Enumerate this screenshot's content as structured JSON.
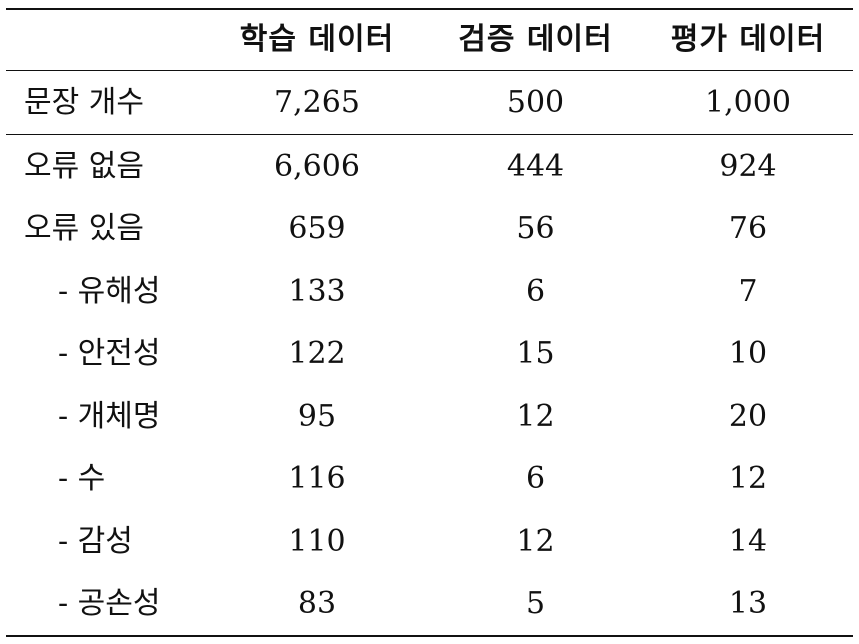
{
  "table": {
    "headers": [
      "",
      "학습 데이터",
      "검증 데이터",
      "평가 데이터"
    ],
    "summary_row": {
      "label": "문장 개수",
      "values": [
        "7,265",
        "500",
        "1,000"
      ]
    },
    "rows": [
      {
        "label": "오류 없음",
        "values": [
          "6,606",
          "444",
          "924"
        ],
        "sub": false
      },
      {
        "label": "오류 있음",
        "values": [
          "659",
          "56",
          "76"
        ],
        "sub": false
      },
      {
        "label": "- 유해성",
        "values": [
          "133",
          "6",
          "7"
        ],
        "sub": true
      },
      {
        "label": "- 안전성",
        "values": [
          "122",
          "15",
          "10"
        ],
        "sub": true
      },
      {
        "label": "- 개체명",
        "values": [
          "95",
          "12",
          "20"
        ],
        "sub": true
      },
      {
        "label": "- 수",
        "values": [
          "116",
          "6",
          "12"
        ],
        "sub": true
      },
      {
        "label": "- 감성",
        "values": [
          "110",
          "12",
          "14"
        ],
        "sub": true
      },
      {
        "label": "- 공손성",
        "values": [
          "83",
          "5",
          "13"
        ],
        "sub": true
      }
    ]
  }
}
